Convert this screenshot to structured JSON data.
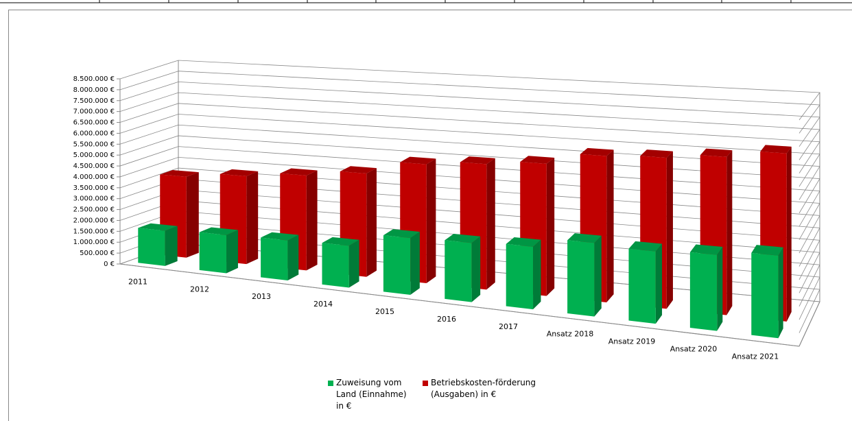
{
  "chart_data": {
    "type": "bar3d",
    "categories": [
      "2011",
      "2012",
      "2013",
      "2014",
      "2015",
      "2016",
      "2017",
      "Ansatz 2018",
      "Ansatz 2019",
      "Ansatz 2020",
      "Ansatz 2021"
    ],
    "series": [
      {
        "name": "Zuweisung vom Land (Einnahme) in €",
        "color": "#00b050",
        "values": [
          1600000,
          1700000,
          1750000,
          1800000,
          2400000,
          2450000,
          2550000,
          2950000,
          2850000,
          2950000,
          3150000
        ]
      },
      {
        "name": "Betriebskosten-förderung (Ausgaben) in €",
        "color": "#c00000",
        "values": [
          3700000,
          3950000,
          4200000,
          4500000,
          5100000,
          5300000,
          5500000,
          6000000,
          6100000,
          6300000,
          6600000
        ]
      }
    ],
    "ylim": [
      0,
      8500000
    ],
    "yticks": [
      {
        "value": 0,
        "label": "0 €"
      },
      {
        "value": 500000,
        "label": "500.000 €"
      },
      {
        "value": 1000000,
        "label": "1.000.000 €"
      },
      {
        "value": 1500000,
        "label": "1.500.000 €"
      },
      {
        "value": 2000000,
        "label": "2.000.000 €"
      },
      {
        "value": 2500000,
        "label": "2.500.000 €"
      },
      {
        "value": 3000000,
        "label": "3.000.000 €"
      },
      {
        "value": 3500000,
        "label": "3.500.000 €"
      },
      {
        "value": 4000000,
        "label": "4.000.000 €"
      },
      {
        "value": 4500000,
        "label": "4.500.000 €"
      },
      {
        "value": 5000000,
        "label": "5.000.000 €"
      },
      {
        "value": 5500000,
        "label": "5.500.000 €"
      },
      {
        "value": 6000000,
        "label": "6.000.000 €"
      },
      {
        "value": 6500000,
        "label": "6.500.000 €"
      },
      {
        "value": 7000000,
        "label": "7.000.000 €"
      },
      {
        "value": 7500000,
        "label": "7.500.000 €"
      },
      {
        "value": 8000000,
        "label": "8.000.000 €"
      },
      {
        "value": 8500000,
        "label": "8.500.000 €"
      }
    ],
    "grid": true,
    "legend": "bottom"
  }
}
